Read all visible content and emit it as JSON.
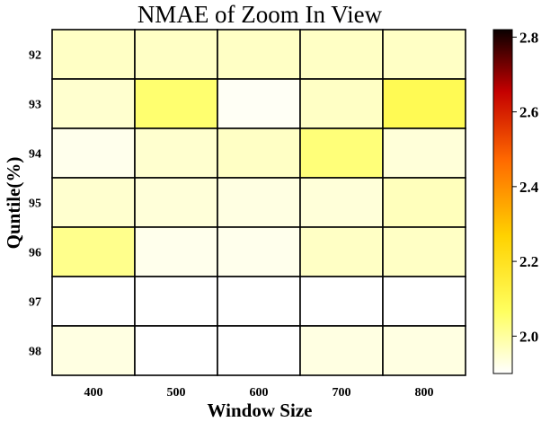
{
  "chart_data": {
    "type": "heatmap",
    "title": "NMAE of Zoom In View",
    "xlabel": "Window Size",
    "ylabel": "Quntile(%)",
    "x_categories": [
      "400",
      "500",
      "600",
      "700",
      "800"
    ],
    "y_categories": [
      "92",
      "93",
      "94",
      "95",
      "96",
      "97",
      "98"
    ],
    "values": [
      [
        1.96,
        1.96,
        1.96,
        1.96,
        1.96
      ],
      [
        1.95,
        2.05,
        1.91,
        1.96,
        2.09
      ],
      [
        1.92,
        1.95,
        1.96,
        2.04,
        1.94
      ],
      [
        1.95,
        1.94,
        1.93,
        1.94,
        1.97
      ],
      [
        2.02,
        1.92,
        1.92,
        1.96,
        1.96
      ],
      [
        1.9,
        1.9,
        1.9,
        1.9,
        1.9
      ],
      [
        1.93,
        1.9,
        1.9,
        1.93,
        1.93
      ]
    ],
    "colorbar": {
      "range": [
        1.9,
        2.82
      ],
      "ticks": [
        "2.0",
        "2.2",
        "2.4",
        "2.6",
        "2.8"
      ],
      "colormap": "hot_r"
    },
    "grid": true
  }
}
